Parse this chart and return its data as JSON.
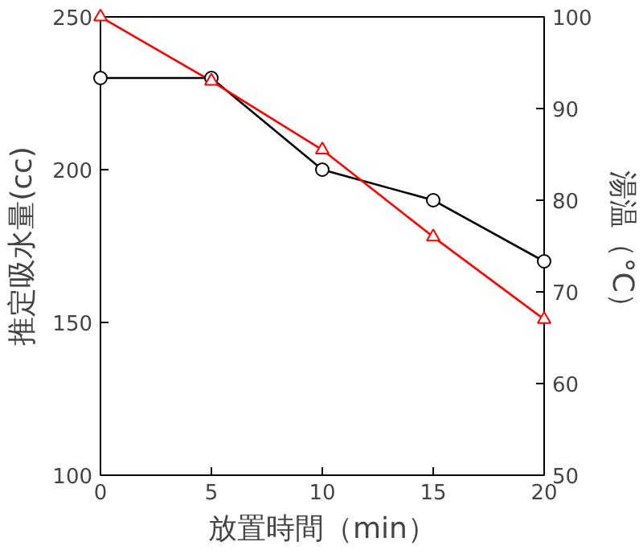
{
  "chart_data": {
    "type": "line",
    "xlabel": "放置時間（min）",
    "ylabel": "推定吸水量(cc)",
    "y2label": "湯温（°C）",
    "x": [
      0,
      5,
      10,
      15,
      20
    ],
    "series": [
      {
        "color": "#000000",
        "values": [
          230,
          230,
          200,
          190,
          170
        ],
        "marker": "circle"
      },
      {
        "color": "#ff0000",
        "values": [
          100,
          93,
          85.5,
          76,
          67
        ],
        "marker": "triangle",
        "axis": "y2"
      }
    ],
    "xlim": [
      0,
      20
    ],
    "xticks": [
      0,
      5,
      10,
      15,
      20
    ],
    "ylim": [
      100,
      250
    ],
    "yticks": [
      100,
      150,
      200,
      250
    ],
    "y2lim": [
      50,
      100
    ],
    "y2ticks": [
      50,
      60,
      70,
      80,
      90,
      100
    ]
  }
}
